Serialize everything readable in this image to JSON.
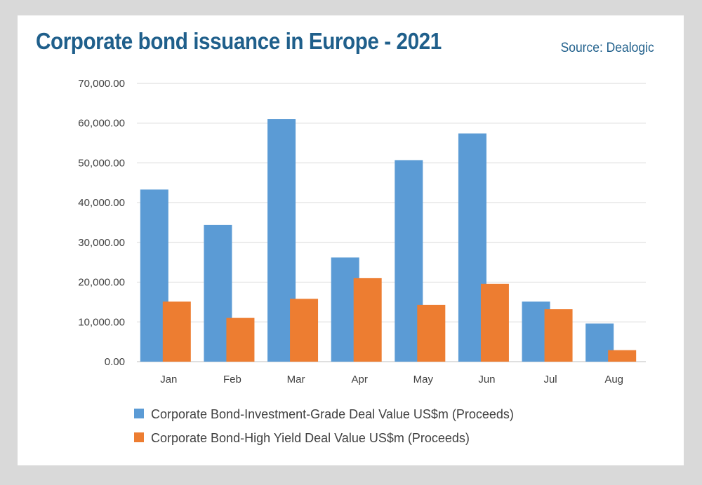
{
  "header": {
    "title": "Corporate bond issuance in Europe - 2021",
    "source": "Source: Dealogic"
  },
  "chart_data": {
    "type": "bar",
    "categories": [
      "Jan",
      "Feb",
      "Mar",
      "Apr",
      "May",
      "Jun",
      "Jul",
      "Aug"
    ],
    "series": [
      {
        "name": "Corporate Bond-Investment-Grade Deal Value US$m (Proceeds)",
        "color": "#5b9bd5",
        "values": [
          43300,
          34400,
          61000,
          26200,
          50700,
          57400,
          15100,
          9600
        ]
      },
      {
        "name": "Corporate Bond-High Yield Deal Value US$m (Proceeds)",
        "color": "#ed7d31",
        "values": [
          15100,
          11000,
          15800,
          21000,
          14300,
          19600,
          13200,
          2900
        ]
      }
    ],
    "yticks": [
      "0.00",
      "10,000.00",
      "20,000.00",
      "30,000.00",
      "40,000.00",
      "50,000.00",
      "60,000.00",
      "70,000.00"
    ],
    "ylim": [
      0,
      70000
    ],
    "grid": true,
    "legend_position": "bottom"
  }
}
